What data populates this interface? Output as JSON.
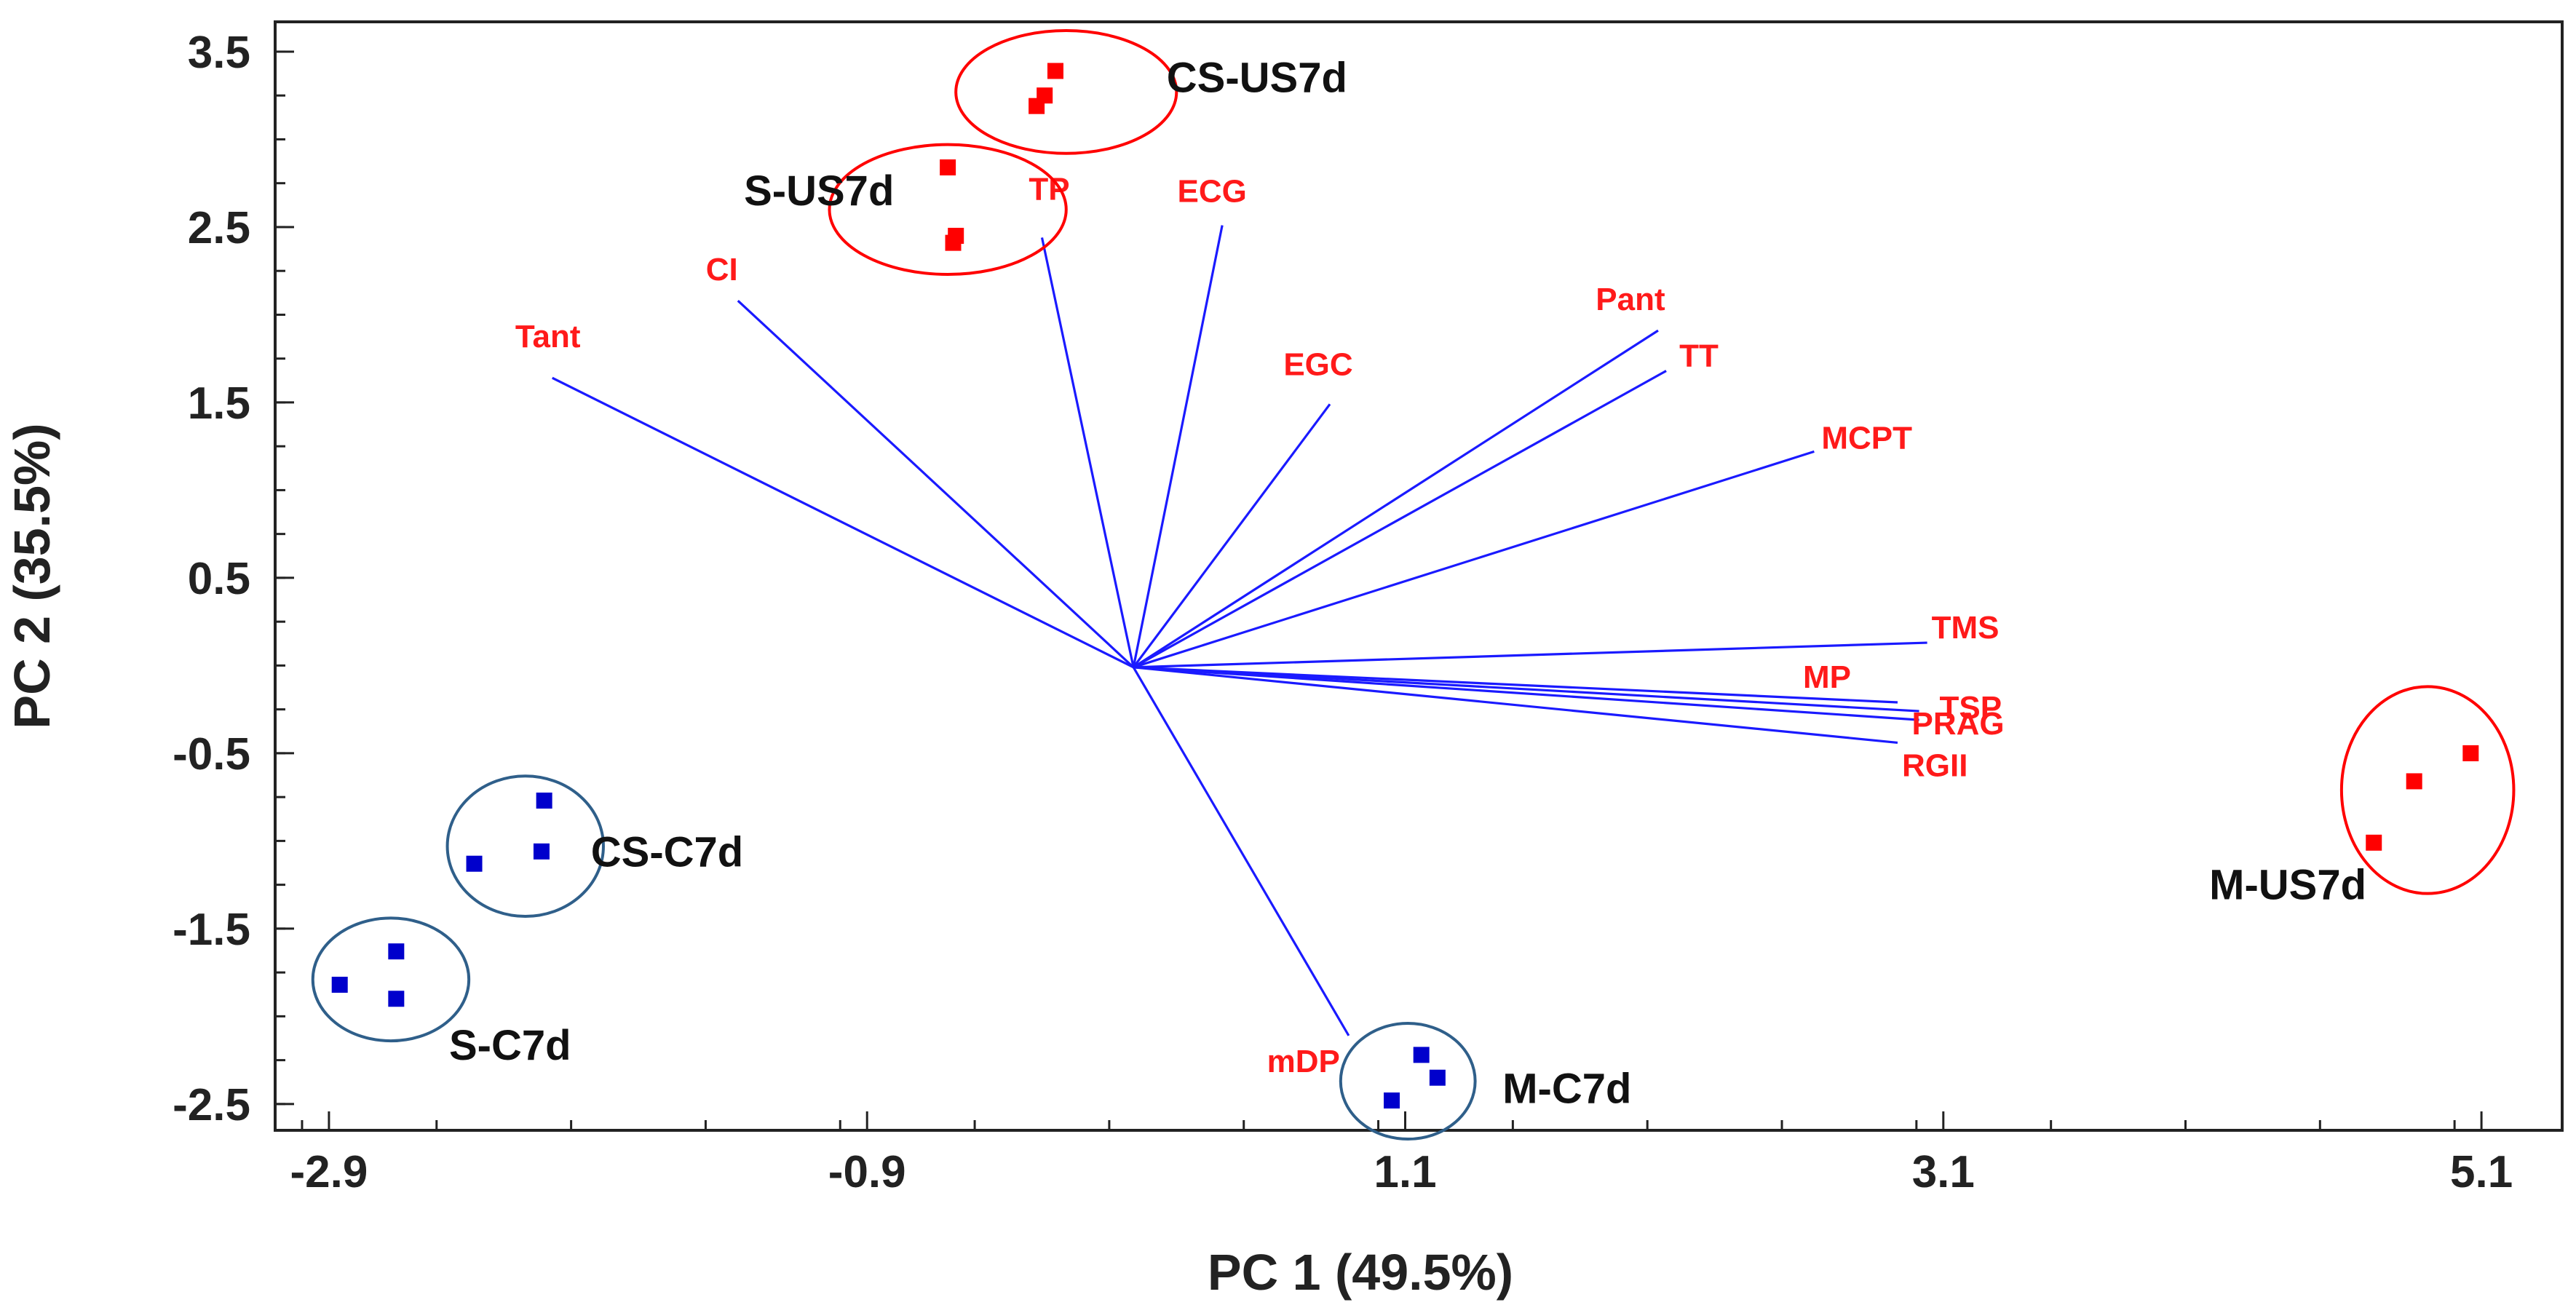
{
  "chart_data": {
    "type": "scatter",
    "title": "",
    "xlabel": "PC 1 (49.5%)",
    "ylabel": "PC 2 (35.5%)",
    "xlim": [
      -3.1,
      5.4
    ],
    "ylim": [
      -2.65,
      3.67
    ],
    "x_ticks": [
      -2.9,
      -0.9,
      1.1,
      3.1,
      5.1
    ],
    "x_tick_labels": [
      "-2.9",
      "-0.9",
      "1.1",
      "3.1",
      "5.1"
    ],
    "y_ticks": [
      3.5,
      2.5,
      1.5,
      0.5,
      -0.5,
      -1.5,
      -2.5
    ],
    "y_tick_labels": [
      "3.5",
      "2.5",
      "1.5",
      "0.5",
      "-0.5",
      "-1.5",
      "-2.5"
    ],
    "colors": {
      "axis": "#222222",
      "vector": "#1a1aff",
      "variable_label": "#ff1a1a",
      "us_point": "#ff0000",
      "us_ellipse": "#ff0000",
      "c_point": "#0000cc",
      "c_ellipse": "#2f5f8a"
    },
    "vector_origin": [
      0.09,
      -0.01
    ],
    "loadings": [
      {
        "name": "Tant",
        "end": [
          -2.07,
          1.64
        ],
        "label": "Tant"
      },
      {
        "name": "CI",
        "end": [
          -1.38,
          2.08
        ],
        "label": "CI"
      },
      {
        "name": "TP",
        "end": [
          -0.25,
          2.44
        ],
        "label": "TP"
      },
      {
        "name": "ECG",
        "end": [
          0.42,
          2.51
        ],
        "label": "ECG"
      },
      {
        "name": "EGC",
        "end": [
          0.82,
          1.49
        ],
        "label": "EGC"
      },
      {
        "name": "Pant",
        "end": [
          2.04,
          1.91
        ],
        "label": "Pant"
      },
      {
        "name": "TT",
        "end": [
          2.07,
          1.68
        ],
        "label": "TT"
      },
      {
        "name": "MCPT",
        "end": [
          2.62,
          1.22
        ],
        "label": "MCPT"
      },
      {
        "name": "TMS",
        "end": [
          3.04,
          0.13
        ],
        "label": "TMS"
      },
      {
        "name": "MP",
        "end": [
          2.93,
          -0.21
        ],
        "label": "MP"
      },
      {
        "name": "TSP",
        "end": [
          3.01,
          -0.26
        ],
        "label": "TSP"
      },
      {
        "name": "PRAG",
        "end": [
          3.01,
          -0.31
        ],
        "label": "PRAG"
      },
      {
        "name": "RGII",
        "end": [
          2.93,
          -0.44
        ],
        "label": "RGII"
      },
      {
        "name": "mDP",
        "end": [
          0.89,
          -2.11
        ],
        "label": "mDP"
      }
    ],
    "groups": [
      {
        "name": "CS-US7d",
        "label": "CS-US7d",
        "kind": "US",
        "points": [
          [
            -0.2,
            3.39
          ],
          [
            -0.24,
            3.25
          ],
          [
            -0.27,
            3.19
          ]
        ],
        "ellipse": {
          "cx": -0.16,
          "cy": 3.27,
          "rx": 0.41,
          "ry": 0.35
        }
      },
      {
        "name": "S-US7d",
        "label": "S-US7d",
        "kind": "US",
        "points": [
          [
            -0.6,
            2.84
          ],
          [
            -0.57,
            2.45
          ],
          [
            -0.58,
            2.41
          ]
        ],
        "ellipse": {
          "cx": -0.6,
          "cy": 2.6,
          "rx": 0.44,
          "ry": 0.37
        }
      },
      {
        "name": "M-US7d",
        "label": "M-US7d",
        "kind": "US",
        "points": [
          [
            5.06,
            -0.5
          ],
          [
            4.85,
            -0.66
          ],
          [
            4.7,
            -1.01
          ]
        ],
        "ellipse": {
          "cx": 4.9,
          "cy": -0.71,
          "rx": 0.32,
          "ry": 0.59
        }
      },
      {
        "name": "CS-C7d",
        "label": "CS-C7d",
        "kind": "C",
        "points": [
          [
            -2.1,
            -0.77
          ],
          [
            -2.11,
            -1.06
          ],
          [
            -2.36,
            -1.13
          ]
        ],
        "ellipse": {
          "cx": -2.17,
          "cy": -1.03,
          "rx": 0.29,
          "ry": 0.4
        }
      },
      {
        "name": "S-C7d",
        "label": "S-C7d",
        "kind": "C",
        "points": [
          [
            -2.65,
            -1.63
          ],
          [
            -2.86,
            -1.82
          ],
          [
            -2.65,
            -1.9
          ]
        ],
        "ellipse": {
          "cx": -2.67,
          "cy": -1.79,
          "rx": 0.29,
          "ry": 0.35
        }
      },
      {
        "name": "M-C7d",
        "label": "M-C7d",
        "kind": "C",
        "points": [
          [
            1.16,
            -2.22
          ],
          [
            1.22,
            -2.35
          ],
          [
            1.05,
            -2.48
          ]
        ],
        "ellipse": {
          "cx": 1.11,
          "cy": -2.37,
          "rx": 0.25,
          "ry": 0.33
        }
      }
    ]
  }
}
